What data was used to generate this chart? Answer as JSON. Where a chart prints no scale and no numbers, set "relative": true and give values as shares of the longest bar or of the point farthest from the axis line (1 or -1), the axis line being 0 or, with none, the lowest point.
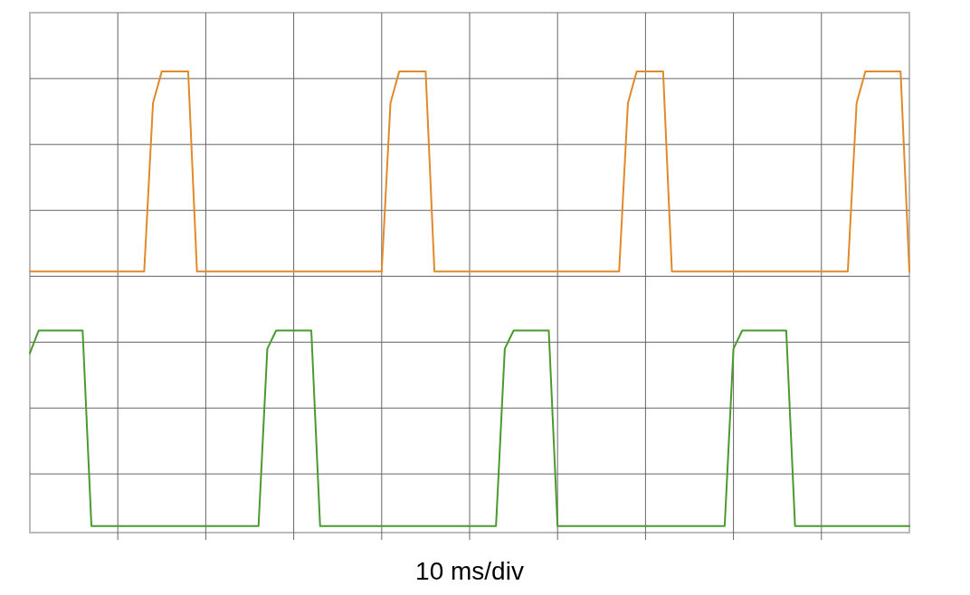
{
  "chart_data": {
    "type": "line",
    "relative": true,
    "xlabel": "10 ms/div",
    "grid": true,
    "marker": "none",
    "line_style": "solid",
    "categories": [
      null,
      null,
      null,
      null,
      null,
      null,
      null,
      null,
      null,
      null,
      null,
      null,
      null,
      null,
      null,
      null,
      null,
      null,
      null,
      null,
      null,
      null,
      null,
      null,
      null,
      null,
      null,
      null,
      null,
      null,
      null,
      null,
      null,
      null,
      null,
      null,
      null,
      null,
      null,
      null,
      null,
      null,
      null,
      null,
      null,
      null,
      null,
      null,
      null,
      null,
      null,
      null,
      null,
      null,
      null,
      null,
      null,
      null,
      null,
      null,
      null,
      null,
      null,
      null,
      null,
      null,
      null,
      null,
      null,
      null,
      null,
      null,
      null,
      null,
      null,
      null,
      null,
      null,
      null,
      null,
      null,
      null,
      null,
      null,
      null,
      null,
      null,
      null,
      null,
      null,
      null,
      null,
      null,
      null,
      null,
      null,
      null,
      null,
      null,
      null,
      null
    ],
    "series": [
      {
        "color": "#e08a2c",
        "values": [
          0.56,
          0.56,
          0.56,
          0.56,
          0.56,
          0.56,
          0.56,
          0.56,
          0.56,
          0.56,
          0.56,
          0.56,
          0.56,
          0.56,
          0.93,
          1,
          1,
          1,
          1,
          0.56,
          0.56,
          0.56,
          0.56,
          0.56,
          0.56,
          0.56,
          0.56,
          0.56,
          0.56,
          0.56,
          0.56,
          0.56,
          0.56,
          0.56,
          0.56,
          0.56,
          0.56,
          0.56,
          0.56,
          0.56,
          0.56,
          0.93,
          1,
          1,
          1,
          1,
          0.56,
          0.56,
          0.56,
          0.56,
          0.56,
          0.56,
          0.56,
          0.56,
          0.56,
          0.56,
          0.56,
          0.56,
          0.56,
          0.56,
          0.56,
          0.56,
          0.56,
          0.56,
          0.56,
          0.56,
          0.56,
          0.56,
          0.93,
          1,
          1,
          1,
          1,
          0.56,
          0.56,
          0.56,
          0.56,
          0.56,
          0.56,
          0.56,
          0.56,
          0.56,
          0.56,
          0.56,
          0.56,
          0.56,
          0.56,
          0.56,
          0.56,
          0.56,
          0.56,
          0.56,
          0.56,
          0.56,
          0.93,
          1,
          1,
          1,
          1,
          1,
          0.56
        ]
      },
      {
        "color": "#4a9a2e",
        "values": [
          0.38,
          0.43,
          0.43,
          0.43,
          0.43,
          0.43,
          0.43,
          0,
          0,
          0,
          0,
          0,
          0,
          0,
          0,
          0,
          0,
          0,
          0,
          0,
          0,
          0,
          0,
          0,
          0,
          0,
          0,
          0.39,
          0.43,
          0.43,
          0.43,
          0.43,
          0.43,
          0,
          0,
          0,
          0,
          0,
          0,
          0,
          0,
          0,
          0,
          0,
          0,
          0,
          0,
          0,
          0,
          0,
          0,
          0,
          0,
          0,
          0.39,
          0.43,
          0.43,
          0.43,
          0.43,
          0.43,
          0,
          0,
          0,
          0,
          0,
          0,
          0,
          0,
          0,
          0,
          0,
          0,
          0,
          0,
          0,
          0,
          0,
          0,
          0,
          0,
          0.39,
          0.43,
          0.43,
          0.43,
          0.43,
          0.43,
          0.43,
          0,
          0,
          0,
          0,
          0,
          0,
          0,
          0,
          0,
          0,
          0,
          0,
          0,
          0
        ]
      }
    ]
  }
}
